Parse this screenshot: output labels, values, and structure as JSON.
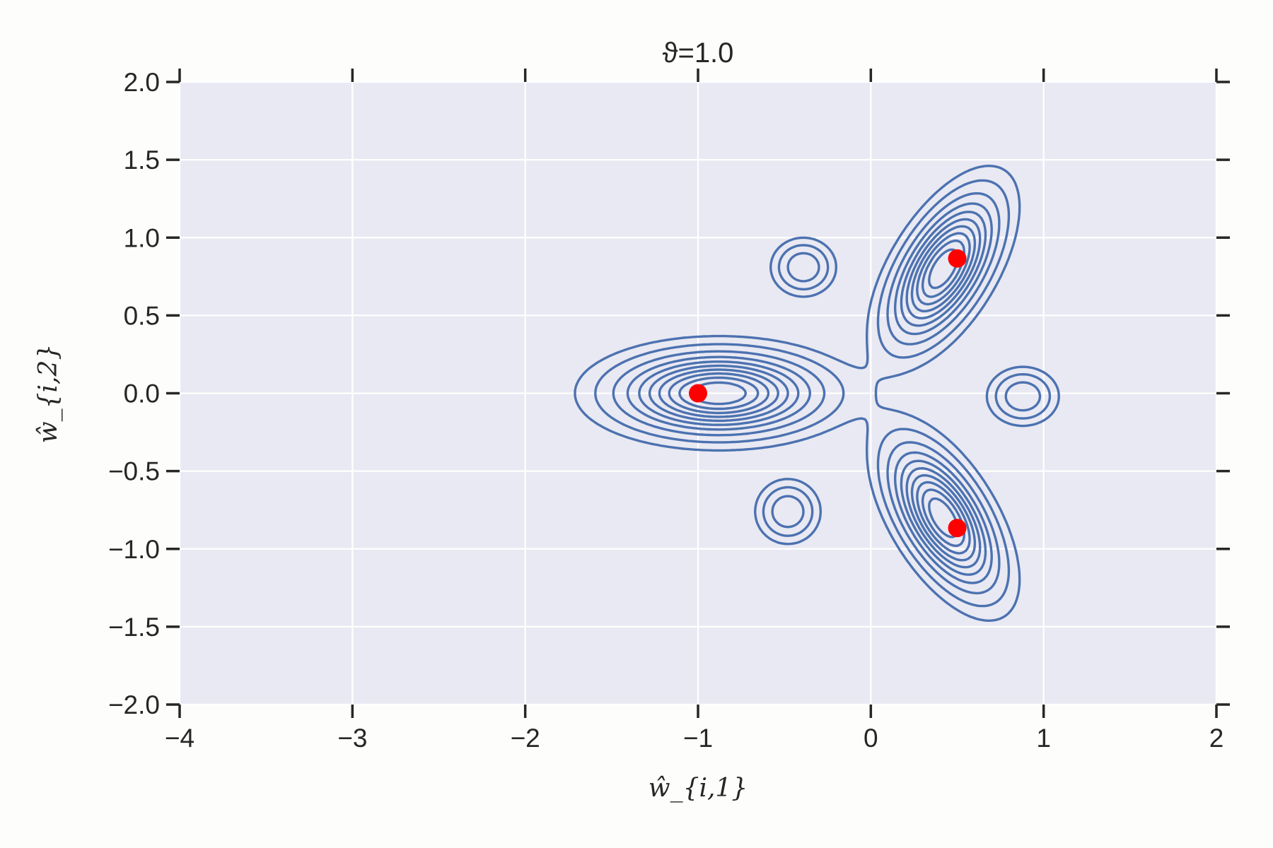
{
  "chart_data": {
    "type": "contour",
    "title": "ϑ=1.0",
    "xlabel": "ŵ_{i,1}",
    "ylabel": "ŵ_{i,2}",
    "xlim": [
      -4,
      2
    ],
    "ylim": [
      -2,
      2
    ],
    "grid": true,
    "x_ticks": [
      -4,
      -3,
      -2,
      -1,
      0,
      1,
      2
    ],
    "x_tick_labels": [
      "−4",
      "−3",
      "−2",
      "−1",
      "0",
      "1",
      "2"
    ],
    "y_ticks": [
      2.0,
      1.5,
      1.0,
      0.5,
      0.0,
      -0.5,
      -1.0,
      -1.5,
      -2.0
    ],
    "y_tick_labels": [
      "2.0",
      "1.5",
      "1.0",
      "0.5",
      "0.0",
      "−0.5",
      "−1.0",
      "−1.5",
      "−2.0"
    ],
    "markers": {
      "name": "",
      "color": "#ff0000",
      "points": [
        {
          "x": -1.0,
          "y": 0.0
        },
        {
          "x": 0.5,
          "y": 0.866
        },
        {
          "x": 0.5,
          "y": -0.866
        }
      ]
    },
    "contour_color": "#4c72b0",
    "background_color": "#e9e9f3",
    "grid_color": "#ffffff"
  }
}
